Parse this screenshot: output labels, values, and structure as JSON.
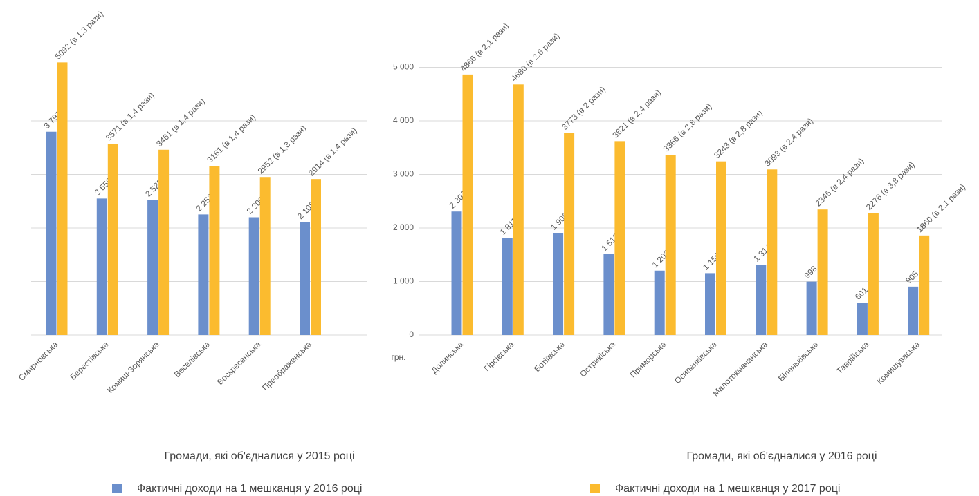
{
  "chart_data": [
    {
      "type": "bar",
      "xlabel": "Громади, які об'єдналися у 2015 році",
      "categories": [
        "Смирновська",
        "Берестівська",
        "Комиш-Зорянська",
        "Веселівська",
        "Воскресенська",
        "Преображенська"
      ],
      "series": [
        {
          "name": "Фактичні доходи на 1 мешканця у 2016 році",
          "color": "#6b8fcc",
          "values": [
            3797,
            2550,
            2523,
            2253,
            2200,
            2108
          ],
          "value_labels": [
            "3 797",
            "2 550",
            "2 523",
            "2 253",
            "2 200",
            "2 108"
          ]
        },
        {
          "name": "Фактичні доходи на 1 мешканця у 2017 році",
          "color": "#fbbb2f",
          "values": [
            5092,
            3571,
            3461,
            3161,
            2952,
            2914
          ],
          "value_labels": [
            "5092 (в 1,3 рази)",
            "3571 (в 1,4 рази)",
            "3461 (в 1,4 рази)",
            "3161 (в 1,4 рази)",
            "2952 (в 1,3 рази)",
            "2914 (в 1,4 рази)"
          ]
        }
      ],
      "ylim": [
        0,
        6000
      ],
      "yticks": [
        0,
        1000,
        2000,
        3000,
        4000
      ],
      "grid": true
    },
    {
      "type": "bar",
      "xlabel": "Громади, які об'єдналися у 2016 році",
      "ylabel": "грн.",
      "categories": [
        "Долинська",
        "Гірсівська",
        "Ботіївська",
        "Острикіська",
        "Приморська",
        "Осипенківська",
        "Малотокмачанська",
        "Біленьківська",
        "Таврійська",
        "Комишуваська"
      ],
      "series": [
        {
          "color": "#6b8fcc",
          "values": [
            2307,
            1811,
            1906,
            1512,
            1203,
            1156,
            1314,
            998,
            601,
            905
          ],
          "value_labels": [
            "2 307",
            "1 811",
            "1 906",
            "1 512",
            "1 203",
            "1 156",
            "1 314",
            "998",
            "601",
            "905"
          ]
        },
        {
          "color": "#fbbb2f",
          "values": [
            4866,
            4680,
            3773,
            3621,
            3366,
            3243,
            3093,
            2346,
            2276,
            1860
          ],
          "value_labels": [
            "4866 (в 2,1 рази)",
            "4680 (в 2,6 рази)",
            "3773 (в 2 рази)",
            "3621 (в 2,4 рази)",
            "3366 (в 2,8 рази)",
            "3243 (в 2,8 рази)",
            "3093 (в 2,4 рази)",
            "2346 (в 2,4 рази)",
            "2276 (в 3,8 рази)",
            "1860 (в 2,1 рази)"
          ]
        }
      ],
      "ylim": [
        0,
        6000
      ],
      "yticks": [
        0,
        {
          "value": 1000,
          "label": "1 000"
        },
        {
          "value": 2000,
          "label": "2 000"
        },
        {
          "value": 3000,
          "label": "3 000"
        },
        {
          "value": 4000,
          "label": "4 000"
        },
        {
          "value": 5000,
          "label": "5 000"
        }
      ],
      "grid": true
    }
  ]
}
